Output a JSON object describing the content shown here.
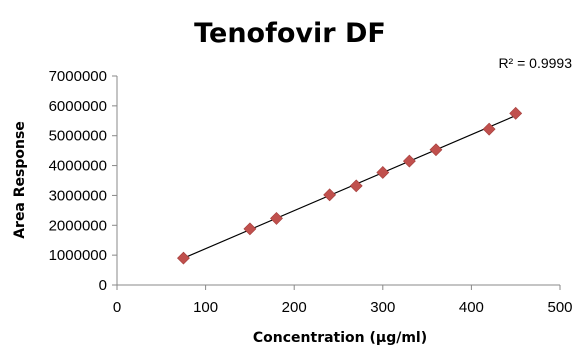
{
  "chart_data": {
    "type": "scatter",
    "title": "Tenofovir DF",
    "xlabel": "Concentration (µg/ml)",
    "ylabel": "Area Response",
    "xlim": [
      0,
      500
    ],
    "ylim": [
      0,
      7000000
    ],
    "x_ticks": [
      "0",
      "100",
      "200",
      "300",
      "400",
      "500"
    ],
    "y_ticks": [
      "0",
      "1000000",
      "2000000",
      "3000000",
      "4000000",
      "5000000",
      "6000000",
      "7000000"
    ],
    "grid": false,
    "legend": "none",
    "series": [
      {
        "marker": "diamond",
        "color": "#c0504d",
        "points": [
          {
            "x": 75,
            "y": 900000
          },
          {
            "x": 150,
            "y": 1880000
          },
          {
            "x": 180,
            "y": 2230000
          },
          {
            "x": 240,
            "y": 3020000
          },
          {
            "x": 270,
            "y": 3320000
          },
          {
            "x": 300,
            "y": 3770000
          },
          {
            "x": 330,
            "y": 4150000
          },
          {
            "x": 360,
            "y": 4530000
          },
          {
            "x": 420,
            "y": 5220000
          },
          {
            "x": 450,
            "y": 5750000
          }
        ]
      }
    ],
    "trendline": {
      "type": "linear",
      "color": "#000000",
      "x_start": 75,
      "x_end": 450
    },
    "annotation": "R² = 0.9993"
  }
}
